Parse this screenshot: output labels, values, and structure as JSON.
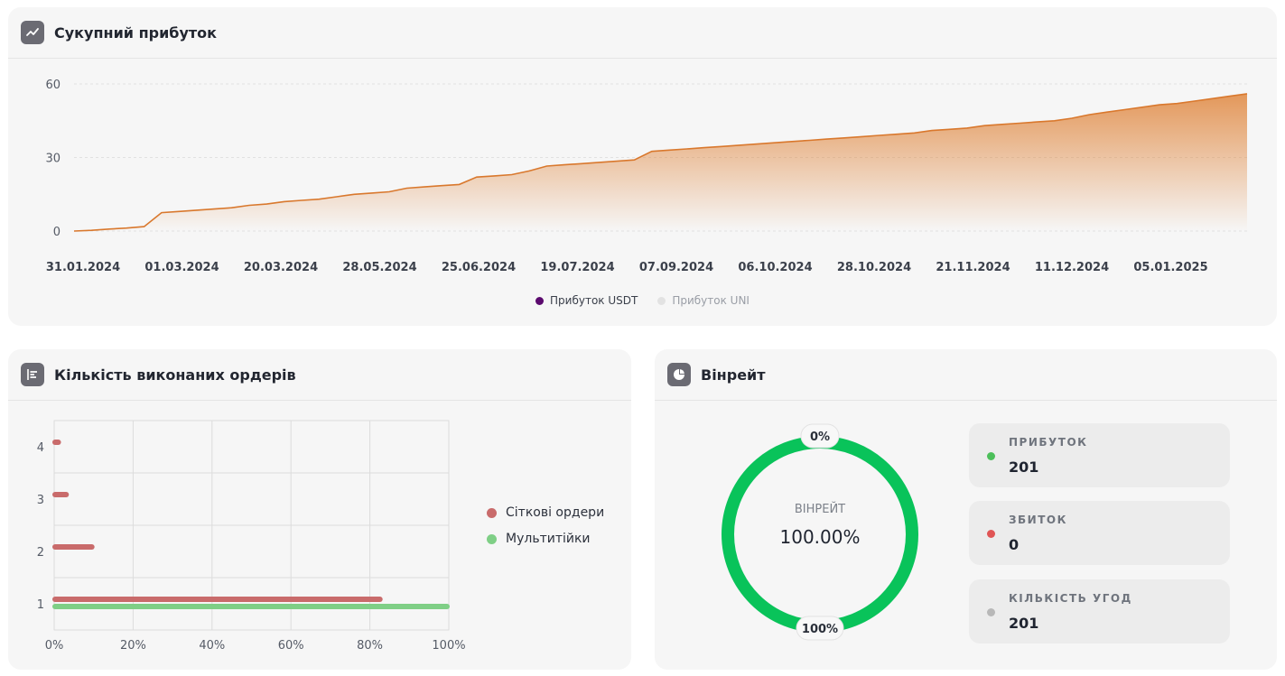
{
  "profit_card": {
    "title": "Сукупний прибуток",
    "icon": "line-chart-icon",
    "legend": [
      {
        "label": "Прибуток USDT",
        "color": "#5b0a6e"
      },
      {
        "label": "Прибуток UNI",
        "color": "#e2e2e2"
      }
    ]
  },
  "orders_card": {
    "title": "Кількість виконаних ордерів",
    "icon": "bar-list-icon",
    "legend": [
      {
        "label": "Сіткові ордери",
        "color": "#c96b6b"
      },
      {
        "label": "Мультитійки",
        "color": "#7fcf86"
      }
    ]
  },
  "winrate_card": {
    "title": "Вінрейт",
    "icon": "pie-chart-icon",
    "center_label": "ВІНРЕЙТ",
    "center_value": "100.00%",
    "top_marker": "0%",
    "bottom_marker": "100%",
    "ring_color": "#09c35a",
    "stats": [
      {
        "label": "ПРИБУТОК",
        "value": "201",
        "color": "#4cbf5a"
      },
      {
        "label": "ЗБИТОК",
        "value": "0",
        "color": "#e05555"
      },
      {
        "label": "КІЛЬКІСТЬ УГОД",
        "value": "201",
        "color": "#b8b8b8"
      }
    ]
  },
  "chart_data": [
    {
      "type": "area",
      "series": [
        {
          "name": "Прибуток USDT",
          "color": "#e0873f"
        }
      ],
      "x_labels": [
        "31.01.2024",
        "01.03.2024",
        "20.03.2024",
        "28.05.2024",
        "25.06.2024",
        "19.07.2024",
        "07.09.2024",
        "06.10.2024",
        "28.10.2024",
        "21.11.2024",
        "11.12.2024",
        "05.01.2025"
      ],
      "y_ticks": [
        0,
        30,
        60
      ],
      "ylim": [
        0,
        60
      ],
      "values": [
        0,
        0.3,
        0.8,
        1.2,
        1.8,
        7.5,
        8,
        8.5,
        9,
        9.5,
        10.5,
        11,
        12,
        12.5,
        13,
        14,
        15,
        15.5,
        16,
        17.5,
        18,
        18.5,
        19,
        22,
        22.5,
        23,
        24.5,
        26.5,
        27,
        27.5,
        28,
        28.5,
        29,
        32.5,
        33,
        33.5,
        34,
        34.5,
        35,
        35.5,
        36,
        36.5,
        37,
        37.5,
        38,
        38.5,
        39,
        39.5,
        40,
        41,
        41.5,
        42,
        43,
        43.5,
        44,
        44.5,
        45,
        46,
        47.5,
        48.5,
        49.5,
        50.5,
        51.5,
        52,
        53,
        54,
        55,
        56
      ]
    },
    {
      "type": "bar",
      "orientation": "horizontal",
      "categories": [
        "1",
        "2",
        "3",
        "4"
      ],
      "series": [
        {
          "name": "Сіткові ордери",
          "color": "#c96b6b",
          "values": [
            83,
            10,
            3.5,
            1.5
          ]
        },
        {
          "name": "Мультитійки",
          "color": "#7fcf86",
          "values": [
            100,
            0,
            0,
            0
          ]
        }
      ],
      "x_ticks": [
        "0%",
        "20%",
        "40%",
        "60%",
        "80%",
        "100%"
      ],
      "xlim": [
        0,
        100
      ]
    }
  ]
}
